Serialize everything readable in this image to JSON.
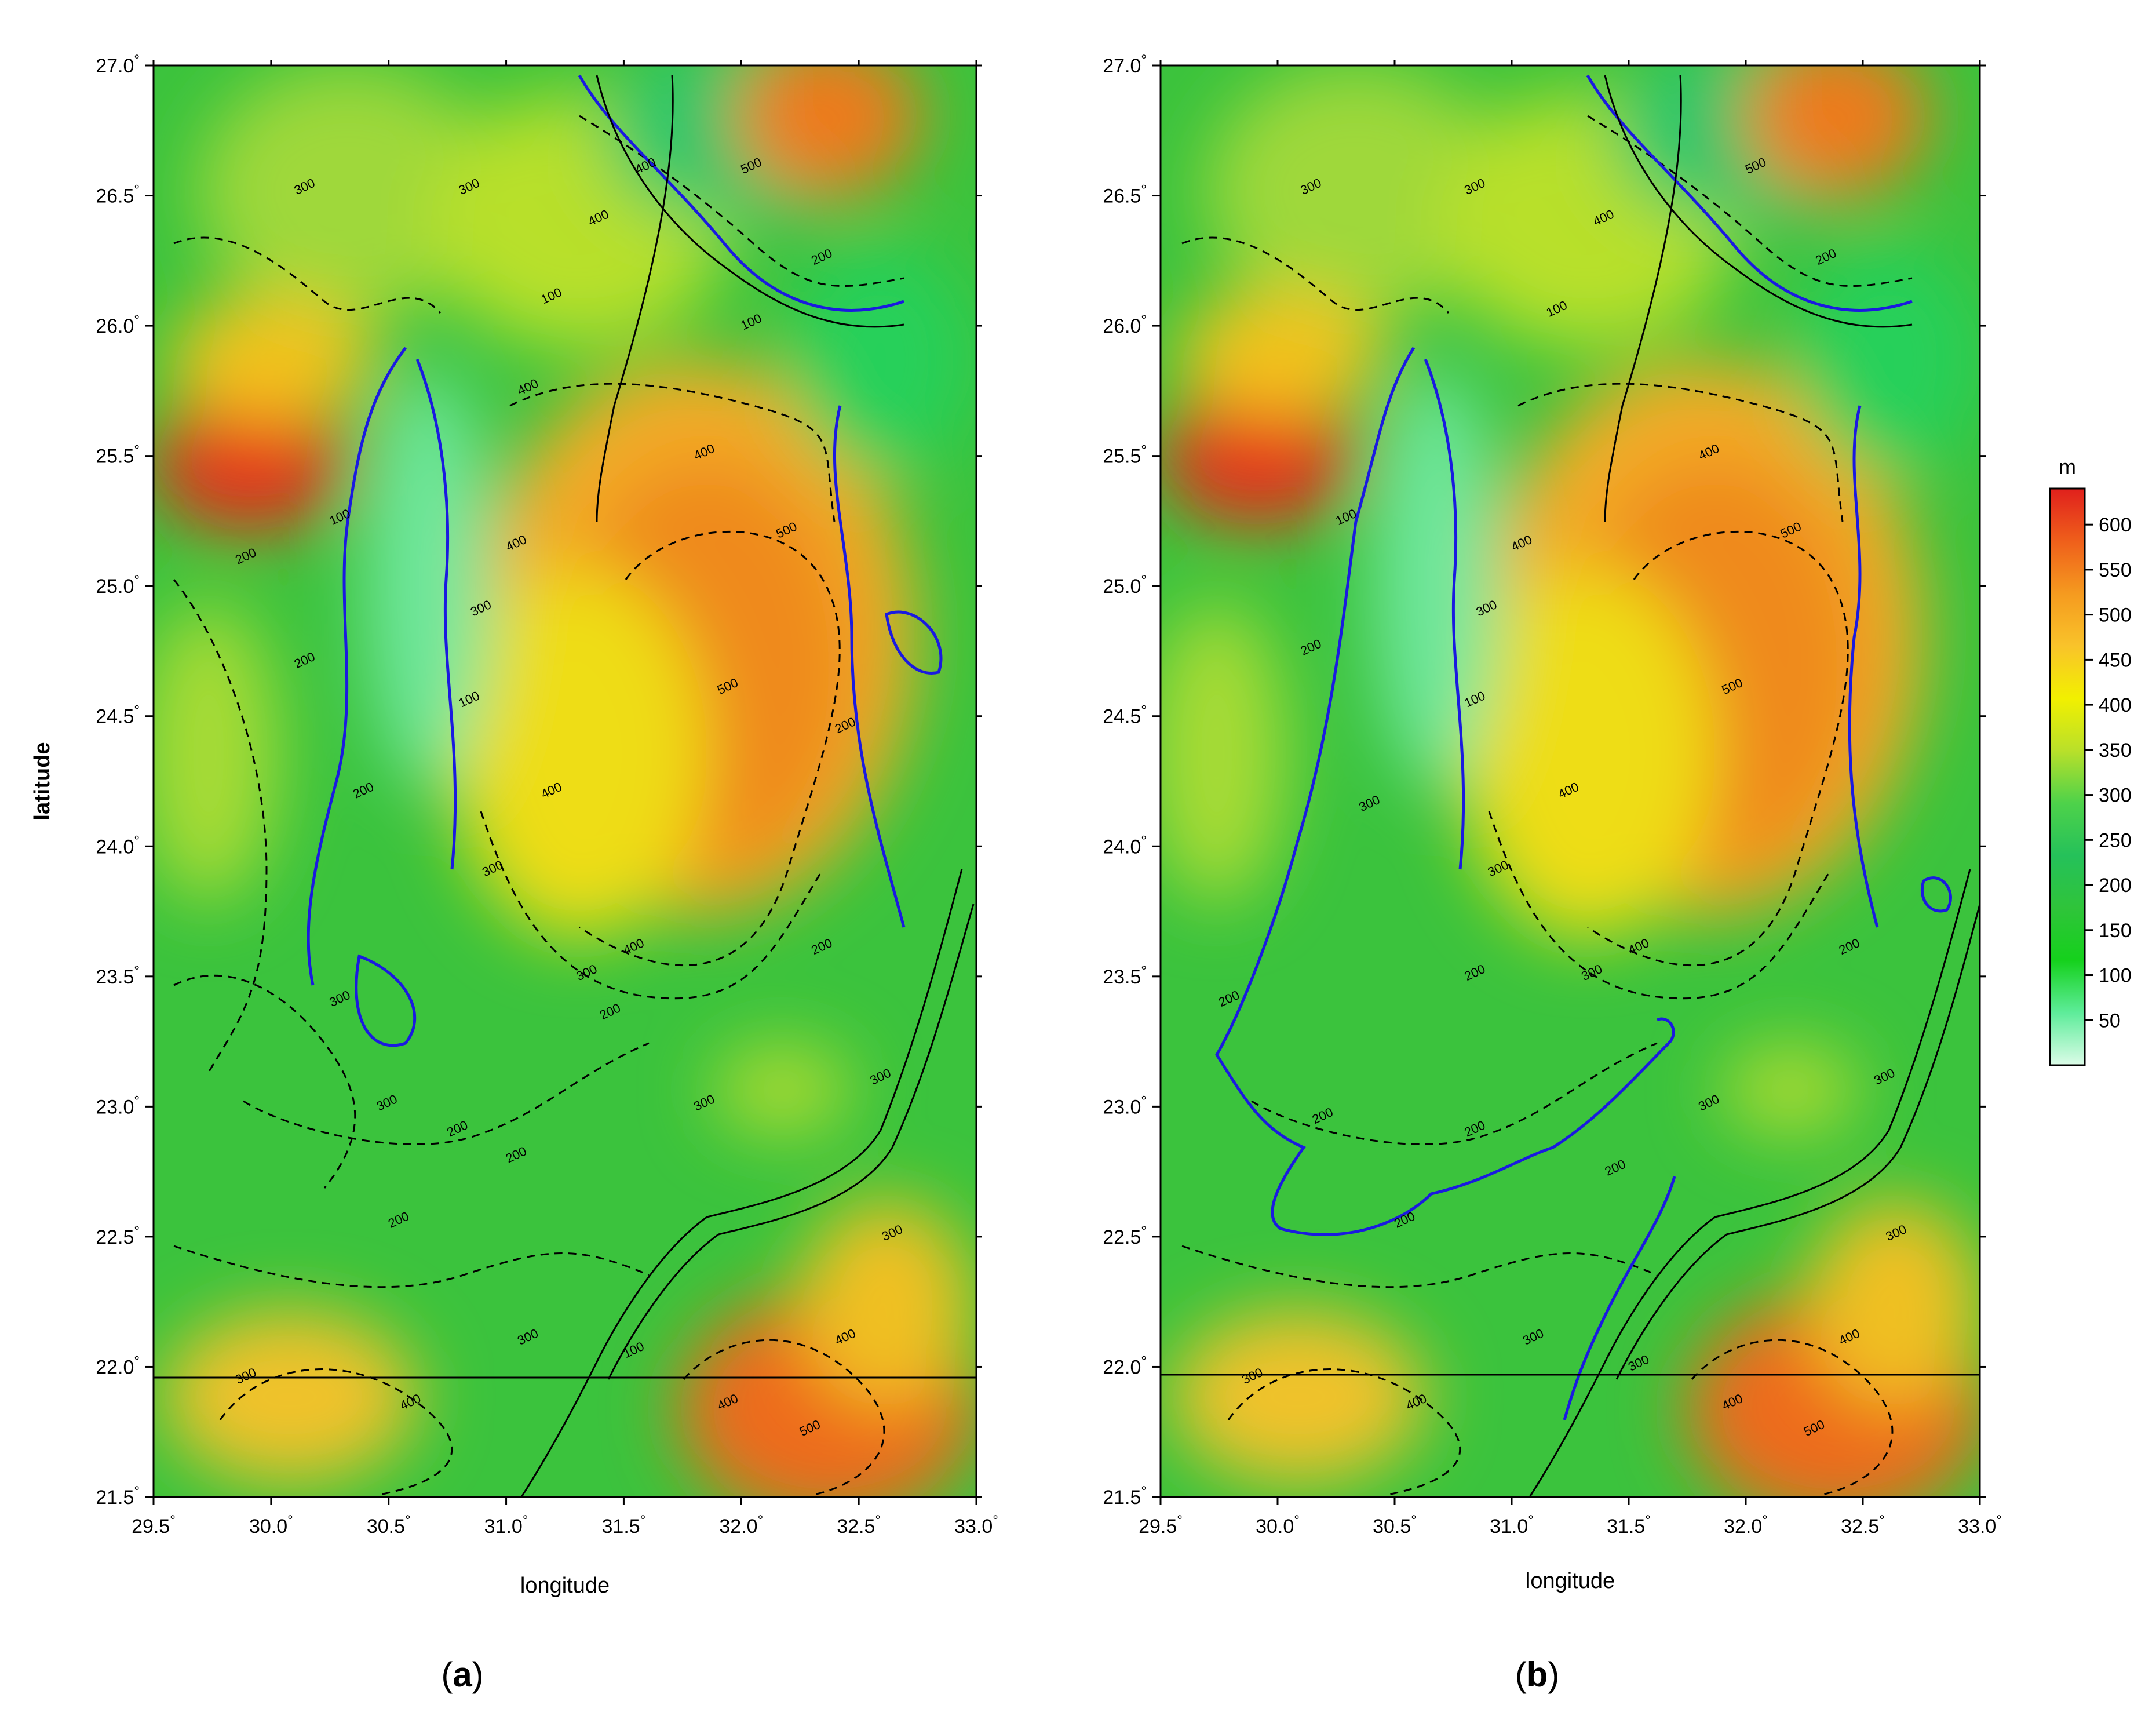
{
  "panels": [
    {
      "id": "a",
      "caption_letter": "a",
      "xlabel": "longitude",
      "ylabel": "latitude",
      "x_ticks": [
        "29.5",
        "30.0",
        "30.5",
        "31.0",
        "31.5",
        "32.0",
        "32.5",
        "33.0"
      ],
      "y_ticks": [
        "27.0",
        "26.5",
        "26.0",
        "25.5",
        "25.0",
        "24.5",
        "24.0",
        "23.5",
        "23.0",
        "22.5",
        "22.0",
        "21.5"
      ],
      "xlim": [
        29.5,
        33.0
      ],
      "ylim": [
        21.5,
        27.0
      ],
      "contour_labels": [
        {
          "text": "300",
          "lon": 30.15,
          "lat": 26.52
        },
        {
          "text": "300",
          "lon": 30.85,
          "lat": 26.52
        },
        {
          "text": "400",
          "lon": 31.4,
          "lat": 26.4
        },
        {
          "text": "100",
          "lon": 31.2,
          "lat": 26.1
        },
        {
          "text": "400",
          "lon": 31.6,
          "lat": 26.6
        },
        {
          "text": "500",
          "lon": 32.05,
          "lat": 26.6
        },
        {
          "text": "200",
          "lon": 32.35,
          "lat": 26.25
        },
        {
          "text": "100",
          "lon": 32.05,
          "lat": 26.0
        },
        {
          "text": "400",
          "lon": 31.1,
          "lat": 25.75
        },
        {
          "text": "400",
          "lon": 31.85,
          "lat": 25.5
        },
        {
          "text": "500",
          "lon": 32.2,
          "lat": 25.2
        },
        {
          "text": "400",
          "lon": 31.05,
          "lat": 25.15
        },
        {
          "text": "200",
          "lon": 29.9,
          "lat": 25.1
        },
        {
          "text": "100",
          "lon": 30.3,
          "lat": 25.25
        },
        {
          "text": "300",
          "lon": 30.9,
          "lat": 24.9
        },
        {
          "text": "200",
          "lon": 30.15,
          "lat": 24.7
        },
        {
          "text": "500",
          "lon": 31.95,
          "lat": 24.6
        },
        {
          "text": "100",
          "lon": 30.85,
          "lat": 24.55
        },
        {
          "text": "200",
          "lon": 30.4,
          "lat": 24.2
        },
        {
          "text": "400",
          "lon": 31.2,
          "lat": 24.2
        },
        {
          "text": "200",
          "lon": 32.45,
          "lat": 24.45
        },
        {
          "text": "300",
          "lon": 30.95,
          "lat": 23.9
        },
        {
          "text": "400",
          "lon": 31.55,
          "lat": 23.6
        },
        {
          "text": "300",
          "lon": 30.3,
          "lat": 23.4
        },
        {
          "text": "300",
          "lon": 31.35,
          "lat": 23.5
        },
        {
          "text": "200",
          "lon": 31.45,
          "lat": 23.35
        },
        {
          "text": "200",
          "lon": 32.35,
          "lat": 23.6
        },
        {
          "text": "300",
          "lon": 30.5,
          "lat": 23.0
        },
        {
          "text": "200",
          "lon": 30.8,
          "lat": 22.9
        },
        {
          "text": "200",
          "lon": 31.05,
          "lat": 22.8
        },
        {
          "text": "200",
          "lon": 30.55,
          "lat": 22.55
        },
        {
          "text": "300",
          "lon": 31.85,
          "lat": 23.0
        },
        {
          "text": "300",
          "lon": 32.6,
          "lat": 23.1
        },
        {
          "text": "300",
          "lon": 32.65,
          "lat": 22.5
        },
        {
          "text": "300",
          "lon": 31.1,
          "lat": 22.1
        },
        {
          "text": "100",
          "lon": 31.55,
          "lat": 22.05
        },
        {
          "text": "400",
          "lon": 30.6,
          "lat": 21.85
        },
        {
          "text": "400",
          "lon": 31.95,
          "lat": 21.85
        },
        {
          "text": "500",
          "lon": 32.3,
          "lat": 21.75
        },
        {
          "text": "400",
          "lon": 32.45,
          "lat": 22.1
        },
        {
          "text": "300",
          "lon": 29.9,
          "lat": 21.95
        }
      ]
    },
    {
      "id": "b",
      "caption_letter": "b",
      "xlabel": "longitude",
      "ylabel": "",
      "x_ticks": [
        "29.5",
        "30.0",
        "30.5",
        "31.0",
        "31.5",
        "32.0",
        "32.5",
        "33.0"
      ],
      "y_ticks": [
        "27.0",
        "26.5",
        "26.0",
        "25.5",
        "25.0",
        "24.5",
        "24.0",
        "23.5",
        "23.0",
        "22.5",
        "22.0",
        "21.5"
      ],
      "xlim": [
        29.5,
        33.0
      ],
      "ylim": [
        21.5,
        27.0
      ],
      "contour_labels": [
        {
          "text": "300",
          "lon": 30.15,
          "lat": 26.52
        },
        {
          "text": "300",
          "lon": 30.85,
          "lat": 26.52
        },
        {
          "text": "400",
          "lon": 31.4,
          "lat": 26.4
        },
        {
          "text": "100",
          "lon": 31.2,
          "lat": 26.05
        },
        {
          "text": "500",
          "lon": 32.05,
          "lat": 26.6
        },
        {
          "text": "200",
          "lon": 32.35,
          "lat": 26.25
        },
        {
          "text": "400",
          "lon": 31.85,
          "lat": 25.5
        },
        {
          "text": "500",
          "lon": 32.2,
          "lat": 25.2
        },
        {
          "text": "400",
          "lon": 31.05,
          "lat": 25.15
        },
        {
          "text": "100",
          "lon": 30.3,
          "lat": 25.25
        },
        {
          "text": "300",
          "lon": 30.9,
          "lat": 24.9
        },
        {
          "text": "200",
          "lon": 30.15,
          "lat": 24.75
        },
        {
          "text": "500",
          "lon": 31.95,
          "lat": 24.6
        },
        {
          "text": "100",
          "lon": 30.85,
          "lat": 24.55
        },
        {
          "text": "400",
          "lon": 31.25,
          "lat": 24.2
        },
        {
          "text": "300",
          "lon": 30.4,
          "lat": 24.15
        },
        {
          "text": "300",
          "lon": 30.95,
          "lat": 23.9
        },
        {
          "text": "400",
          "lon": 31.55,
          "lat": 23.6
        },
        {
          "text": "200",
          "lon": 30.85,
          "lat": 23.5
        },
        {
          "text": "300",
          "lon": 31.35,
          "lat": 23.5
        },
        {
          "text": "200",
          "lon": 29.8,
          "lat": 23.4
        },
        {
          "text": "200",
          "lon": 32.45,
          "lat": 23.6
        },
        {
          "text": "200",
          "lon": 30.2,
          "lat": 22.95
        },
        {
          "text": "200",
          "lon": 30.85,
          "lat": 22.9
        },
        {
          "text": "300",
          "lon": 31.85,
          "lat": 23.0
        },
        {
          "text": "300",
          "lon": 32.6,
          "lat": 23.1
        },
        {
          "text": "200",
          "lon": 31.45,
          "lat": 22.75
        },
        {
          "text": "300",
          "lon": 32.65,
          "lat": 22.5
        },
        {
          "text": "200",
          "lon": 30.55,
          "lat": 22.55
        },
        {
          "text": "300",
          "lon": 31.1,
          "lat": 22.1
        },
        {
          "text": "300",
          "lon": 31.55,
          "lat": 22.0
        },
        {
          "text": "400",
          "lon": 30.6,
          "lat": 21.85
        },
        {
          "text": "400",
          "lon": 31.95,
          "lat": 21.85
        },
        {
          "text": "500",
          "lon": 32.3,
          "lat": 21.75
        },
        {
          "text": "400",
          "lon": 32.45,
          "lat": 22.1
        },
        {
          "text": "300",
          "lon": 29.9,
          "lat": 21.95
        }
      ]
    }
  ],
  "colorbar": {
    "unit": "m",
    "ticks": [
      "600",
      "550",
      "500",
      "450",
      "400",
      "350",
      "300",
      "250",
      "200",
      "150",
      "100",
      "50"
    ],
    "range": [
      0,
      640
    ],
    "colors": [
      "#dcfce8",
      "#5eec9a",
      "#15d11c",
      "#2fc43a",
      "#25c15a",
      "#4ed24a",
      "#b9e02a",
      "#f2f000",
      "#f9c32a",
      "#f59a1f",
      "#ef5f1b",
      "#e0201c"
    ]
  },
  "colors": {
    "contour_line": "#000000",
    "highlight_contour": "#1a1ae0"
  }
}
